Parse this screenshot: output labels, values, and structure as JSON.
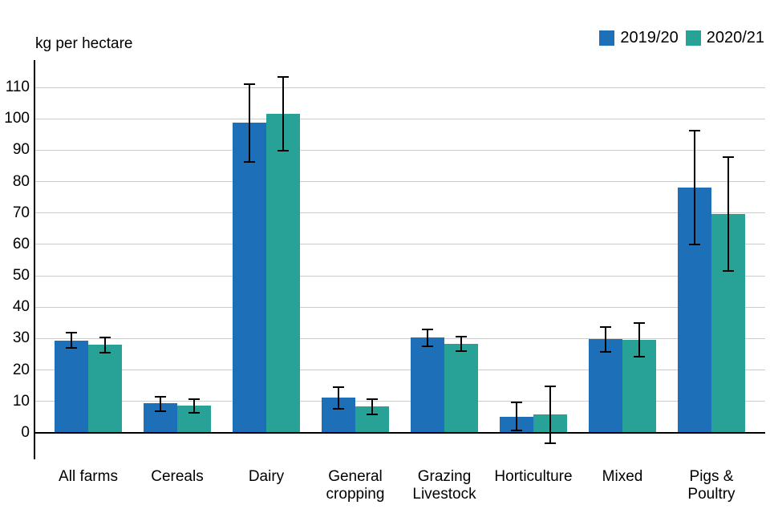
{
  "chart_data": {
    "type": "bar",
    "title": "",
    "ylabel": "kg per hectare",
    "xlabel": "",
    "categories": [
      "All farms",
      "Cereals",
      "Dairy",
      "General\ncropping",
      "Grazing\nLivestock",
      "Horticulture",
      "Mixed",
      "Pigs &\nPoultry"
    ],
    "series": [
      {
        "name": "2019/20",
        "color": "#1d70b8",
        "values": [
          29.4,
          9.4,
          98.8,
          11.2,
          30.3,
          5.1,
          29.9,
          78.1
        ],
        "error_low": [
          27.1,
          6.8,
          86.3,
          7.7,
          27.6,
          0.7,
          25.9,
          59.9
        ],
        "error_high": [
          31.8,
          11.6,
          111.0,
          14.5,
          32.8,
          9.6,
          33.6,
          96.3
        ]
      },
      {
        "name": "2020/21",
        "color": "#28a197",
        "values": [
          28.0,
          8.6,
          101.6,
          8.4,
          28.3,
          5.8,
          29.6,
          69.6
        ],
        "error_low": [
          25.5,
          6.4,
          89.9,
          5.9,
          26.1,
          -3.2,
          24.2,
          51.6
        ],
        "error_high": [
          30.3,
          10.8,
          113.2,
          10.8,
          30.7,
          14.7,
          35.0,
          87.7
        ]
      }
    ],
    "yticks": [
      0,
      10,
      20,
      30,
      40,
      50,
      60,
      70,
      80,
      90,
      100,
      110
    ],
    "ylim": [
      0,
      115
    ],
    "grid": "horizontal",
    "grid_color": "#cccccc",
    "axis_color": "#000000",
    "error_bar_color": "#000000",
    "background_color": "#ffffff",
    "legend_position": "top-right",
    "error_bars": true
  }
}
